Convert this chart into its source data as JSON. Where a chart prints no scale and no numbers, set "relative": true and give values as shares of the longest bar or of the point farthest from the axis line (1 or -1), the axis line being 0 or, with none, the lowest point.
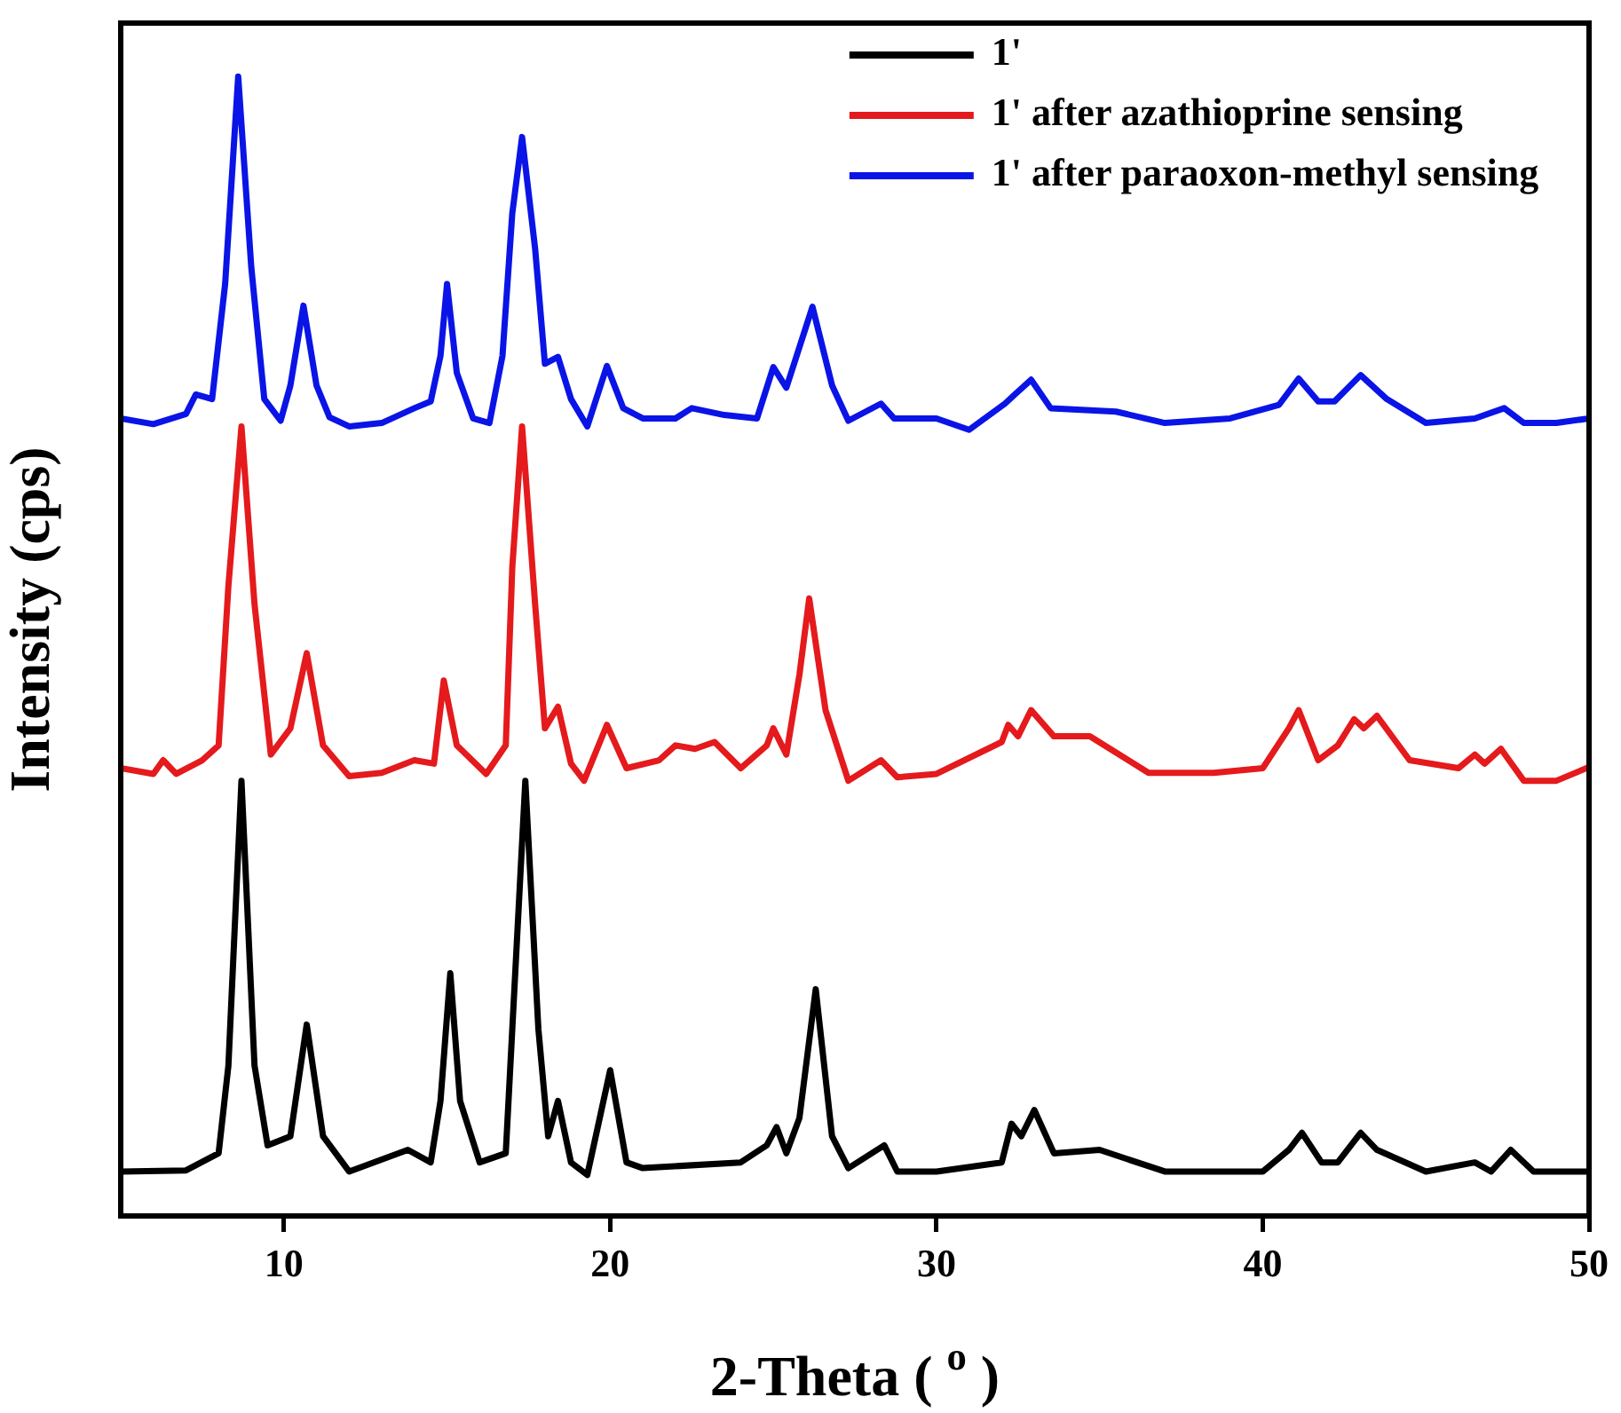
{
  "chart_data": {
    "type": "line",
    "xlabel": "2-Theta ( $^{o}$ )",
    "ylabel": "Intensity (cps)",
    "relative": true,
    "xlim": [
      5,
      50
    ],
    "xticks": [
      10,
      20,
      30,
      40,
      50
    ],
    "tick_labels": "x",
    "grid": false,
    "legend": "top right",
    "series": [
      {
        "name": "1'",
        "color": "#000000",
        "x": [
          5,
          7,
          8.0,
          8.3,
          8.7,
          9.1,
          9.5,
          10.2,
          10.7,
          11.2,
          12,
          13.8,
          14.5,
          14.8,
          15.1,
          15.4,
          16,
          16.8,
          17.0,
          17.4,
          17.8,
          18.1,
          18.4,
          18.8,
          19.3,
          20.0,
          20.5,
          21,
          24,
          24.8,
          25.1,
          25.4,
          25.8,
          26.3,
          26.8,
          27.3,
          28.4,
          28.8,
          30,
          32,
          32.3,
          32.6,
          33.0,
          33.6,
          35,
          37,
          40,
          40.8,
          41.2,
          41.8,
          42.3,
          43.0,
          43.5,
          45,
          46.5,
          47,
          47.6,
          48.3,
          50
        ],
        "values": [
          0.039,
          0.04,
          0.055,
          0.132,
          0.382,
          0.132,
          0.062,
          0.07,
          0.168,
          0.07,
          0.039,
          0.058,
          0.047,
          0.101,
          0.213,
          0.101,
          0.047,
          0.055,
          0.164,
          0.382,
          0.164,
          0.07,
          0.101,
          0.047,
          0.036,
          0.128,
          0.047,
          0.042,
          0.047,
          0.062,
          0.078,
          0.055,
          0.086,
          0.199,
          0.07,
          0.042,
          0.062,
          0.039,
          0.039,
          0.047,
          0.081,
          0.07,
          0.093,
          0.055,
          0.058,
          0.039,
          0.039,
          0.058,
          0.073,
          0.047,
          0.047,
          0.073,
          0.058,
          0.039,
          0.047,
          0.039,
          0.058,
          0.039,
          0.039
        ]
      },
      {
        "name": "1' after azathioprine sensing",
        "color": "#e41a1c",
        "x": [
          5,
          6,
          6.3,
          6.7,
          7.5,
          8.0,
          8.3,
          8.7,
          9.1,
          9.6,
          10.2,
          10.7,
          11.2,
          12,
          13,
          14,
          14.6,
          14.9,
          15.3,
          16.2,
          16.8,
          17.0,
          17.3,
          17.7,
          18.0,
          18.4,
          18.8,
          19.2,
          19.9,
          20.5,
          21.5,
          22,
          22.6,
          23.2,
          24,
          24.8,
          25.0,
          25.4,
          25.8,
          26.1,
          26.6,
          27.3,
          28.3,
          28.8,
          30,
          32,
          32.2,
          32.5,
          32.9,
          33.6,
          34.7,
          36.5,
          38.5,
          40,
          40.8,
          41.1,
          41.7,
          42.3,
          42.8,
          43.1,
          43.5,
          44.5,
          46,
          46.5,
          46.8,
          47.3,
          48,
          49,
          50
        ],
        "values": [
          0.393,
          0.388,
          0.4,
          0.388,
          0.4,
          0.413,
          0.553,
          0.693,
          0.537,
          0.405,
          0.428,
          0.494,
          0.413,
          0.386,
          0.389,
          0.4,
          0.397,
          0.47,
          0.413,
          0.388,
          0.413,
          0.569,
          0.693,
          0.537,
          0.428,
          0.447,
          0.397,
          0.382,
          0.431,
          0.393,
          0.4,
          0.413,
          0.41,
          0.416,
          0.393,
          0.413,
          0.428,
          0.405,
          0.475,
          0.542,
          0.444,
          0.382,
          0.4,
          0.385,
          0.388,
          0.416,
          0.431,
          0.421,
          0.444,
          0.421,
          0.421,
          0.389,
          0.389,
          0.393,
          0.428,
          0.444,
          0.4,
          0.413,
          0.436,
          0.428,
          0.439,
          0.4,
          0.393,
          0.405,
          0.397,
          0.41,
          0.382,
          0.382,
          0.394
        ]
      },
      {
        "name": "1' after paraoxon-methyl sensing",
        "color": "#0a14e6",
        "x": [
          5,
          6,
          7,
          7.3,
          7.8,
          8.2,
          8.6,
          9.0,
          9.4,
          9.9,
          10.2,
          10.6,
          11.0,
          11.4,
          12,
          13,
          14,
          14.5,
          14.8,
          15.0,
          15.3,
          15.8,
          16.3,
          16.7,
          17.0,
          17.3,
          17.7,
          18.0,
          18.4,
          18.8,
          19.3,
          19.9,
          20.4,
          21,
          22,
          22.5,
          23.5,
          24.5,
          25.0,
          25.4,
          26.2,
          26.8,
          27.3,
          28.3,
          28.7,
          30,
          31,
          32.1,
          32.4,
          32.9,
          33.5,
          35.5,
          37,
          39,
          40.5,
          41.1,
          41.7,
          42.2,
          43.0,
          43.8,
          45,
          46.5,
          47.4,
          48,
          49,
          50
        ],
        "values": [
          0.7,
          0.695,
          0.704,
          0.721,
          0.717,
          0.818,
          1.0,
          0.833,
          0.717,
          0.698,
          0.729,
          0.799,
          0.729,
          0.701,
          0.693,
          0.696,
          0.709,
          0.715,
          0.755,
          0.818,
          0.74,
          0.7,
          0.696,
          0.755,
          0.88,
          0.947,
          0.849,
          0.748,
          0.754,
          0.717,
          0.693,
          0.746,
          0.709,
          0.7,
          0.7,
          0.709,
          0.703,
          0.7,
          0.745,
          0.727,
          0.798,
          0.729,
          0.698,
          0.713,
          0.7,
          0.7,
          0.69,
          0.713,
          0.721,
          0.734,
          0.709,
          0.706,
          0.696,
          0.7,
          0.712,
          0.735,
          0.715,
          0.715,
          0.738,
          0.717,
          0.696,
          0.7,
          0.709,
          0.696,
          0.696,
          0.7
        ]
      }
    ]
  }
}
